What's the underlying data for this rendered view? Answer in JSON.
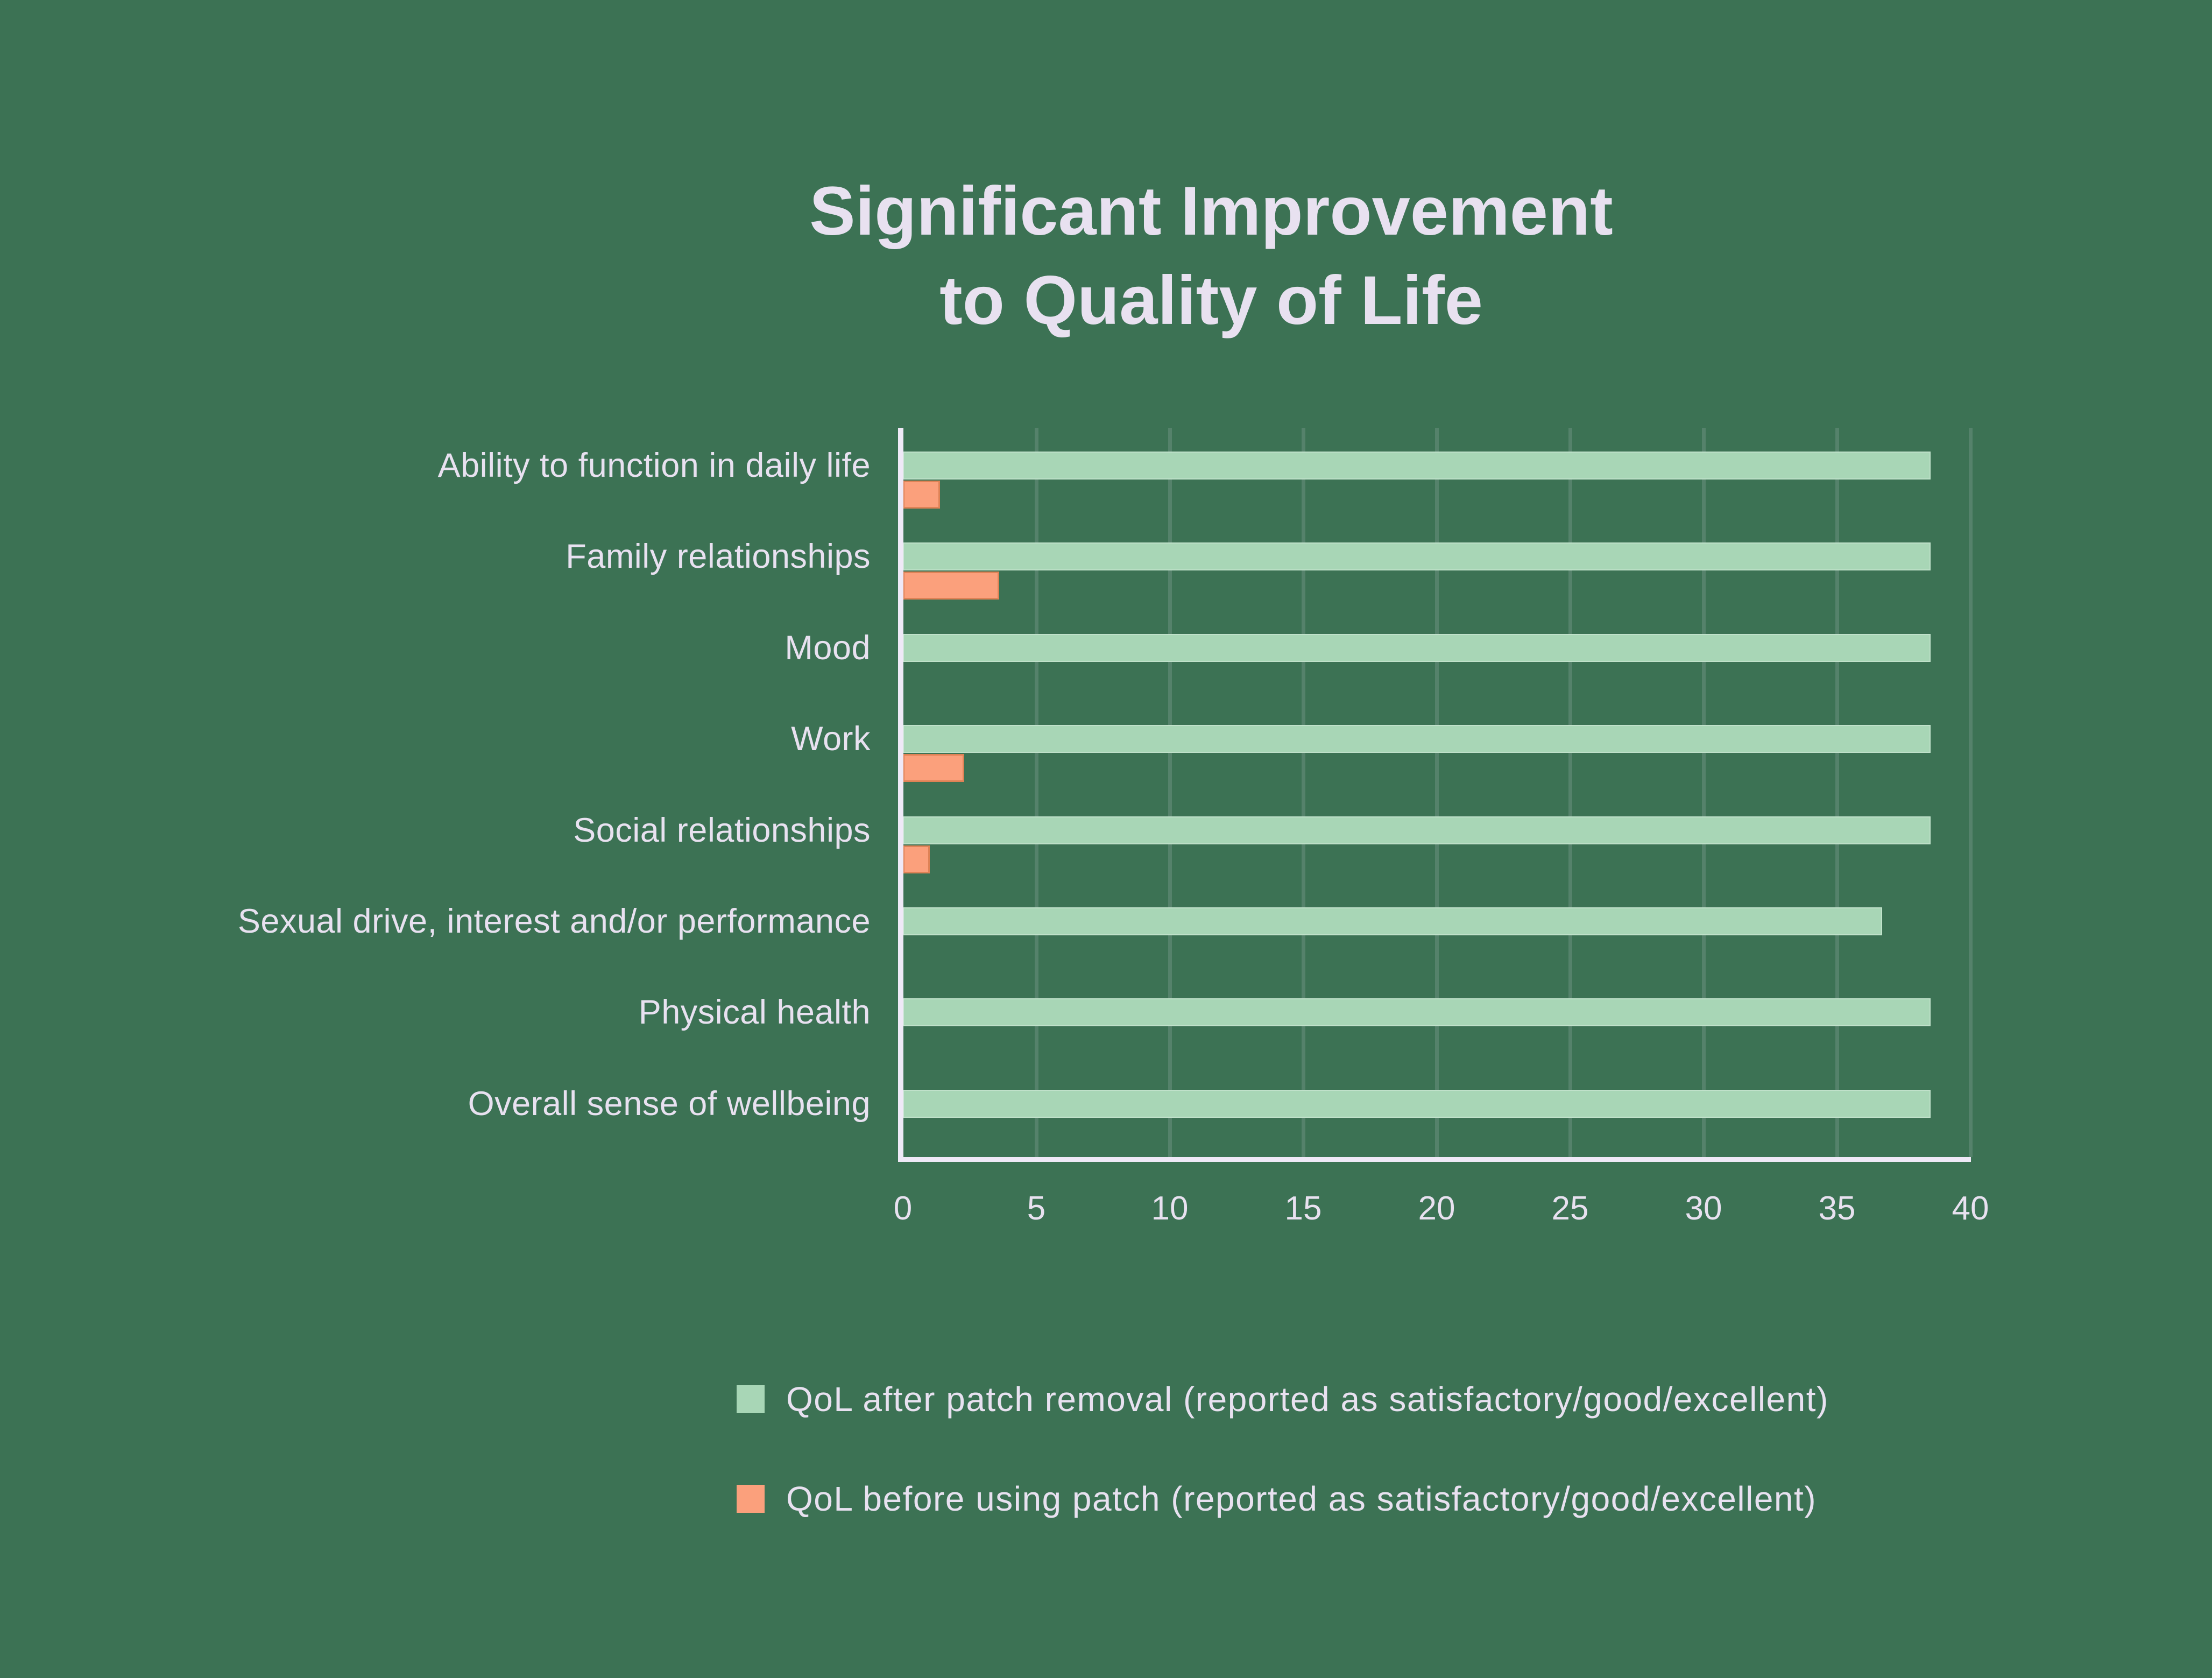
{
  "title": {
    "line1": "Significant Improvement",
    "line2": "to Quality of Life"
  },
  "colors": {
    "background": "#3C7254",
    "bar_after": "#A8D6B6",
    "bar_before": "#FBA07C",
    "text": "#E8E1F0",
    "axis": "#EFE9F7",
    "gridline": "rgba(238,232,245,0.14)"
  },
  "chart_data": {
    "type": "bar",
    "orientation": "horizontal",
    "title": "Significant Improvement to Quality of Life",
    "categories": [
      "Ability to function in daily life",
      "Family relationships",
      "Mood",
      "Work",
      "Social relationships",
      "Sexual drive, interest and/or performance",
      "Physical health",
      "Overall sense of wellbeing"
    ],
    "series": [
      {
        "name": "QoL after patch removal (reported as satisfactory/good/excellent)",
        "color": "#A8D6B6",
        "values": [
          38.5,
          38.5,
          38.5,
          38.5,
          38.5,
          36.7,
          38.5,
          38.5
        ]
      },
      {
        "name": "QoL before using patch (reported as satisfactory/good/excellent)",
        "color": "#FBA07C",
        "values": [
          1.4,
          3.6,
          0,
          2.3,
          1.0,
          0,
          0,
          0
        ]
      }
    ],
    "xlim": [
      0,
      40
    ],
    "x_ticks": [
      0,
      5,
      10,
      15,
      20,
      25,
      30,
      35,
      40
    ],
    "grid": "vertical gridlines every 5 units",
    "legend_position": "bottom-left"
  }
}
